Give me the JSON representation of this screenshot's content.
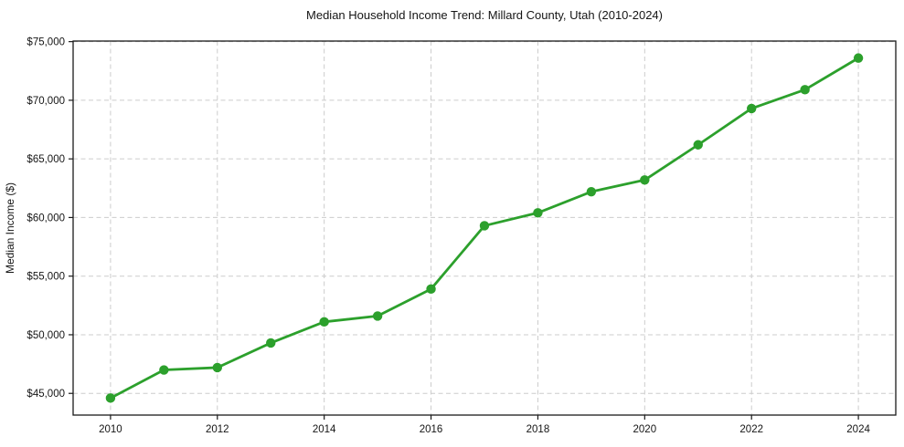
{
  "chart_data": {
    "type": "line",
    "title": "Median Household Income Trend: Millard County, Utah (2010-2024)",
    "xlabel": "",
    "ylabel": "Median Income ($)",
    "x": [
      2010,
      2011,
      2012,
      2013,
      2014,
      2015,
      2016,
      2017,
      2018,
      2019,
      2020,
      2021,
      2022,
      2023,
      2024
    ],
    "values": [
      44600,
      47000,
      47200,
      49300,
      51100,
      51600,
      53900,
      59300,
      60400,
      62200,
      63200,
      66200,
      69300,
      70900,
      73600
    ],
    "series_name": "Median household income",
    "line_color": "#2ca02c",
    "marker": "circle",
    "xlim": [
      2009.3,
      2024.7
    ],
    "ylim": [
      43150,
      75050
    ],
    "xticks": [
      2010,
      2012,
      2014,
      2016,
      2018,
      2020,
      2022,
      2024
    ],
    "xtick_labels": [
      "2010",
      "2012",
      "2014",
      "2016",
      "2018",
      "2020",
      "2022",
      "2024"
    ],
    "yticks": [
      45000,
      50000,
      55000,
      60000,
      65000,
      70000,
      75000
    ],
    "ytick_labels": [
      "$45,000",
      "$50,000",
      "$55,000",
      "$60,000",
      "$65,000",
      "$70,000",
      "$75,000"
    ],
    "grid": true,
    "grid_style": "dashed",
    "grid_color": "#cccccc",
    "spine_color": "#1a1a1a",
    "legend": "none"
  }
}
